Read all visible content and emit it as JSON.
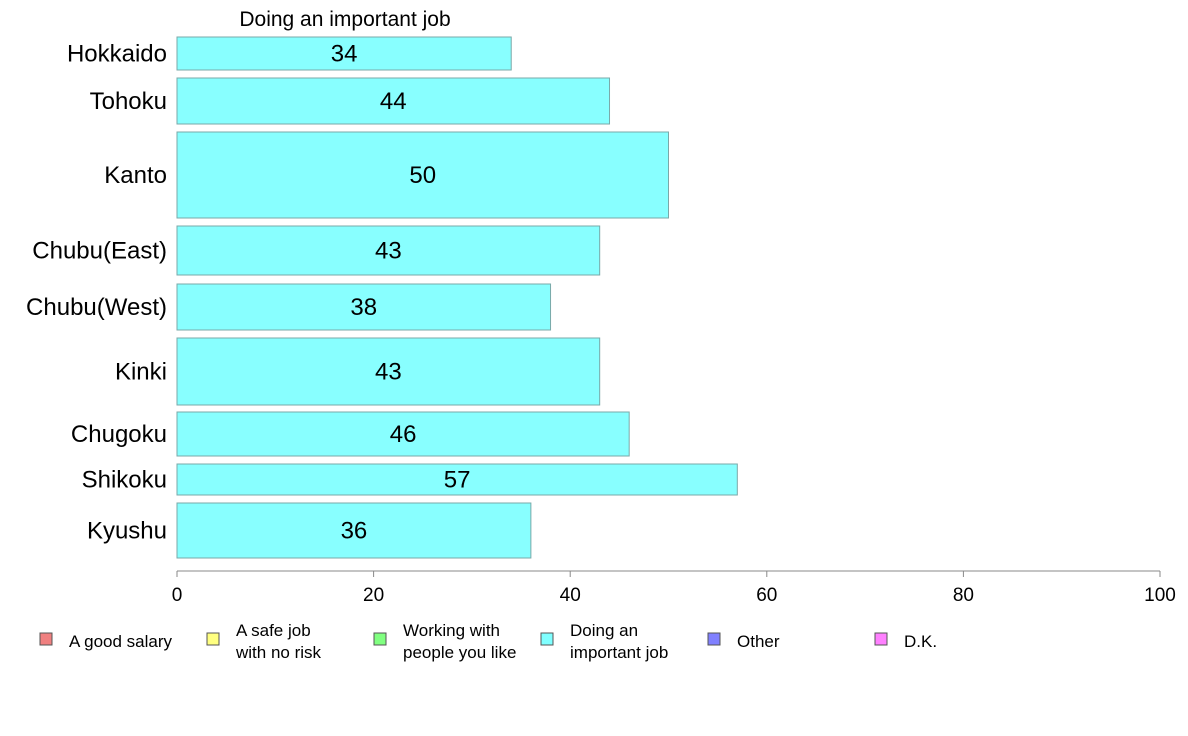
{
  "chart_data": {
    "type": "bar",
    "orientation": "horizontal",
    "title": "Doing an important job",
    "categories": [
      "Hokkaido",
      "Tohoku",
      "Kanto",
      "Chubu(East)",
      "Chubu(West)",
      "Kinki",
      "Chugoku",
      "Shikoku",
      "Kyushu"
    ],
    "series": [
      {
        "values": [
          34,
          44,
          50,
          43,
          38,
          43,
          46,
          57,
          36
        ],
        "color": "#88ffff"
      }
    ],
    "data_labels": [
      "34",
      "44",
      "50",
      "43",
      "38",
      "43",
      "46",
      "57",
      "36"
    ],
    "xlim": [
      0,
      100
    ],
    "x_ticks": [
      "0",
      "20",
      "40",
      "60",
      "80",
      "100"
    ],
    "x_tick_values": [
      0,
      20,
      40,
      60,
      80,
      100
    ],
    "grid": false,
    "legend_position": "bottom",
    "legend": [
      {
        "lines": [
          "A good salary"
        ],
        "color": "#f08080"
      },
      {
        "lines": [
          "A safe job",
          "with no risk"
        ],
        "color": "#ffff80"
      },
      {
        "lines": [
          "Working with",
          "people you like"
        ],
        "color": "#80ff80"
      },
      {
        "lines": [
          "Doing an",
          "important job"
        ],
        "color": "#80ffff"
      },
      {
        "lines": [
          "Other"
        ],
        "color": "#8080ff"
      },
      {
        "lines": [
          "D.K."
        ],
        "color": "#ff80ff"
      }
    ],
    "bar_stroke_color": "#7aa8a8",
    "axis_color": "#888888"
  }
}
